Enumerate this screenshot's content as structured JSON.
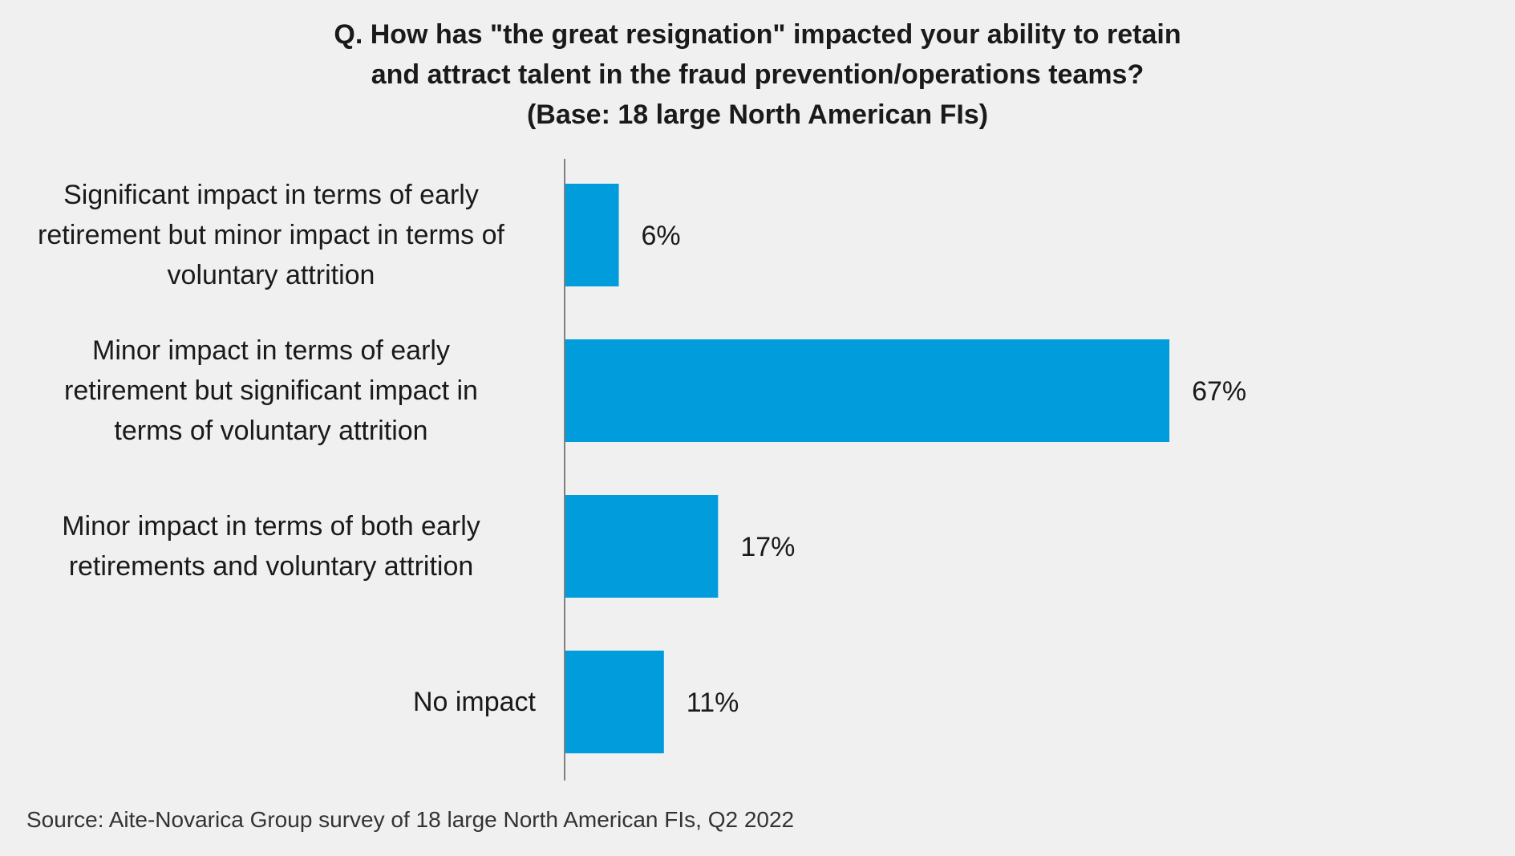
{
  "chart_data": {
    "type": "bar",
    "orientation": "horizontal",
    "title_lines": [
      "Q. How has \"the great resignation\" impacted your ability to retain",
      "and attract talent in the fraud prevention/operations teams?",
      "(Base: 18 large North American FIs)"
    ],
    "categories": [
      "Significant impact in terms of early retirement but minor impact in terms of voluntary attrition",
      "Minor impact in terms of early retirement but significant impact in terms of voluntary attrition",
      "Minor impact in terms of both early retirements and voluntary attrition",
      "No impact"
    ],
    "category_label_lines": [
      [
        "Significant impact in terms of early",
        "retirement but minor impact in terms of",
        "voluntary attrition"
      ],
      [
        "Minor impact in terms of early",
        "retirement but significant impact in",
        "terms of voluntary attrition"
      ],
      [
        "Minor impact in terms of both early",
        "retirements and voluntary attrition"
      ],
      [
        "No impact"
      ]
    ],
    "values": [
      6,
      67,
      17,
      11
    ],
    "value_labels": [
      "6%",
      "67%",
      "17%",
      "11%"
    ],
    "xlim": [
      0,
      100
    ],
    "bar_color": "#009cdc",
    "axis_color": "#808080",
    "grid": false,
    "legend": "none",
    "source": "Source: Aite-Novarica Group survey of 18 large North American FIs, Q2 2022"
  }
}
